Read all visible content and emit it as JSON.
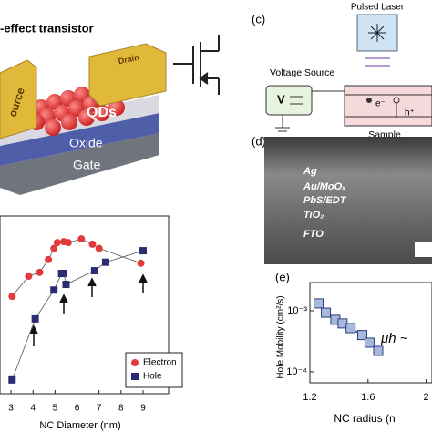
{
  "panel_a": {
    "title": "-effect transistor",
    "source": "ource",
    "drain": "Drain",
    "qds": "QDs",
    "oxide": "Oxide",
    "gate": "Gate"
  },
  "panel_c": {
    "label": "(c)",
    "laser": "Pulsed Laser",
    "voltage": "Voltage Source",
    "v": "V",
    "electron": "e⁻",
    "hole": "h⁺",
    "sample": "Sample"
  },
  "panel_d": {
    "label": "(d)",
    "layers": [
      "Ag",
      "Au/MoOₓ",
      "PbS/EDT",
      "TiO₂",
      "FTO"
    ]
  },
  "panel_e": {
    "label": "(e)"
  },
  "chart_data": [
    {
      "type": "scatter",
      "xlabel": "NC Diameter (nm)",
      "xlim": [
        2.5,
        10.16
      ],
      "xticks": [
        3,
        4,
        5,
        6,
        7,
        8,
        9
      ],
      "ylim": [
        9e-06,
        0.26
      ],
      "log_y": true,
      "legend": "lower-right",
      "series": [
        {
          "name": "Electron",
          "color": "#e23b3b",
          "marker": "circle",
          "x": [
            3.05,
            3.8,
            4.3,
            4.7,
            4.95,
            5.1,
            5.4,
            5.6,
            6.2,
            6.7,
            7.0,
            8.9
          ],
          "values": [
            0.0025,
            0.008,
            0.01,
            0.021,
            0.04,
            0.056,
            0.059,
            0.056,
            0.069,
            0.051,
            0.04,
            0.017
          ]
        },
        {
          "name": "Hole",
          "color": "#2b2d73",
          "marker": "square",
          "x": [
            3.05,
            4.1,
            4.95,
            5.3,
            5.4,
            5.5,
            6.8,
            7.3,
            9.0
          ],
          "values": [
            2e-05,
            0.00068,
            0.0036,
            0.0094,
            0.0094,
            0.005,
            0.011,
            0.018,
            0.035
          ]
        }
      ]
    },
    {
      "type": "line",
      "xlabel": "NC radius (n",
      "ylabel": "Hole Mobility (cm²/s)",
      "annotation": "μh ~",
      "xlim": [
        1.2,
        2.04
      ],
      "xticks": [
        1.2,
        1.6,
        2
      ],
      "ylim": [
        6.6e-05,
        0.0029
      ],
      "log_y": true,
      "yticks": [
        {
          "value": 0.001,
          "label": "10⁻³"
        },
        {
          "value": 0.0001,
          "label": "10⁻⁴"
        }
      ],
      "series": [
        {
          "color": "#a8badb",
          "line_color": "#2c3d80",
          "marker": "square",
          "x": [
            1.26,
            1.31,
            1.375,
            1.425,
            1.48,
            1.56,
            1.61,
            1.67
          ],
          "values": [
            0.00132,
            0.00093,
            0.00071,
            0.00062,
            0.00052,
            0.0004,
            0.0003,
            0.00022
          ]
        }
      ]
    }
  ]
}
